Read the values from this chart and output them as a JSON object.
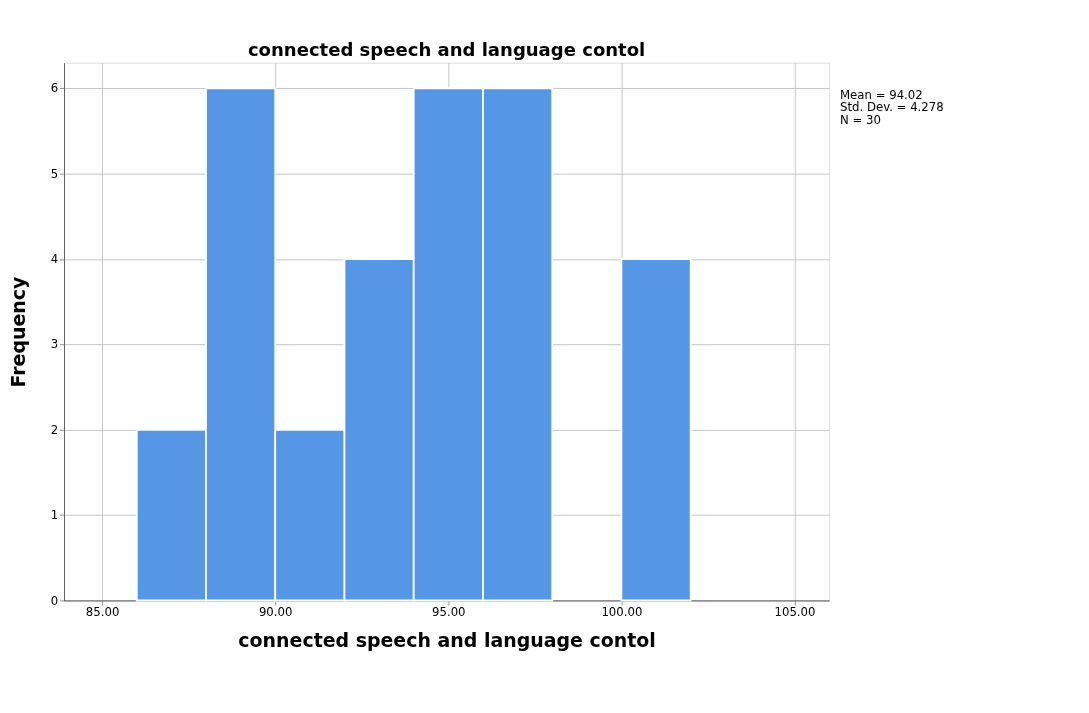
{
  "chart_data": {
    "type": "histogram",
    "title": "connected speech and language contol",
    "xlabel": "connected speech and language contol",
    "ylabel": "Frequency",
    "bins": [
      86,
      88,
      90,
      92,
      94,
      96,
      98,
      100,
      102
    ],
    "values": [
      2,
      6,
      2,
      4,
      6,
      6,
      0,
      4
    ],
    "color": "#5596e6",
    "xlim": [
      83.9,
      106
    ],
    "ylim": [
      0,
      6.3
    ],
    "xticks": [
      {
        "value": 85,
        "label": "85.00"
      },
      {
        "value": 90,
        "label": "90.00"
      },
      {
        "value": 95,
        "label": "95.00"
      },
      {
        "value": 100,
        "label": "100.00"
      },
      {
        "value": 105,
        "label": "105.00"
      }
    ],
    "yticks": [
      0,
      1,
      2,
      3,
      4,
      5,
      6
    ],
    "grid": true,
    "annotations": [
      "Mean = 94.02",
      "Std. Dev. = 4.278",
      "N = 30"
    ]
  }
}
